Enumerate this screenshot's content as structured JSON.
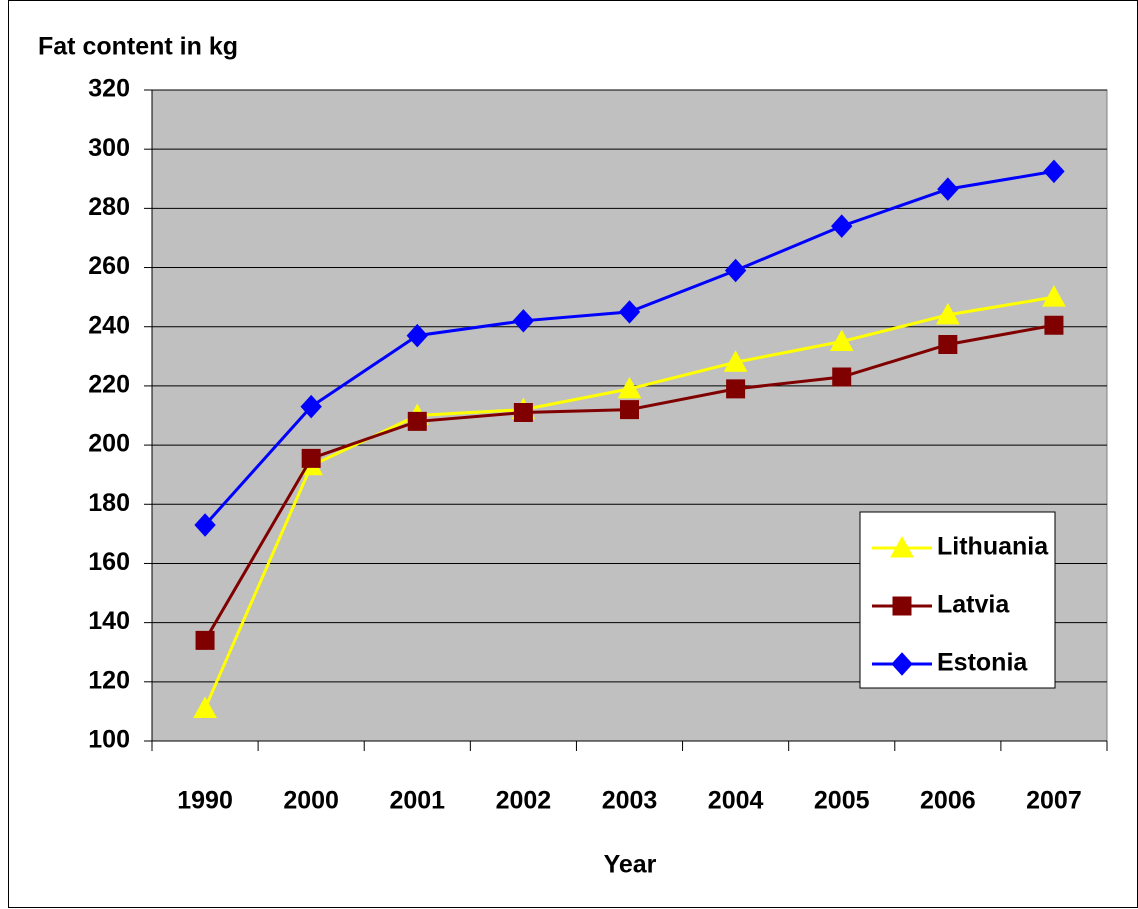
{
  "chart_data": {
    "type": "line",
    "ylabel": "Fat content in kg",
    "xlabel": "Year",
    "categories": [
      "1990",
      "2000",
      "2001",
      "2002",
      "2003",
      "2004",
      "2005",
      "2006",
      "2007"
    ],
    "series": [
      {
        "name": "Lithuania",
        "color": "#ffff00",
        "marker": "triangle",
        "values": [
          111,
          193,
          210,
          212,
          219,
          228,
          235,
          244,
          250
        ]
      },
      {
        "name": "Latvia",
        "color": "#800000",
        "marker": "square",
        "values": [
          134,
          195.5,
          208,
          211,
          212,
          219,
          223,
          234,
          240.5
        ]
      },
      {
        "name": "Estonia",
        "color": "#0000ff",
        "marker": "diamond",
        "values": [
          173,
          213,
          237,
          242,
          245,
          259,
          274,
          286.5,
          292.5
        ]
      }
    ],
    "ylim": [
      100,
      320
    ],
    "yticks": [
      100,
      120,
      140,
      160,
      180,
      200,
      220,
      240,
      260,
      280,
      300,
      320
    ],
    "grid": true,
    "legend": "lower right"
  }
}
